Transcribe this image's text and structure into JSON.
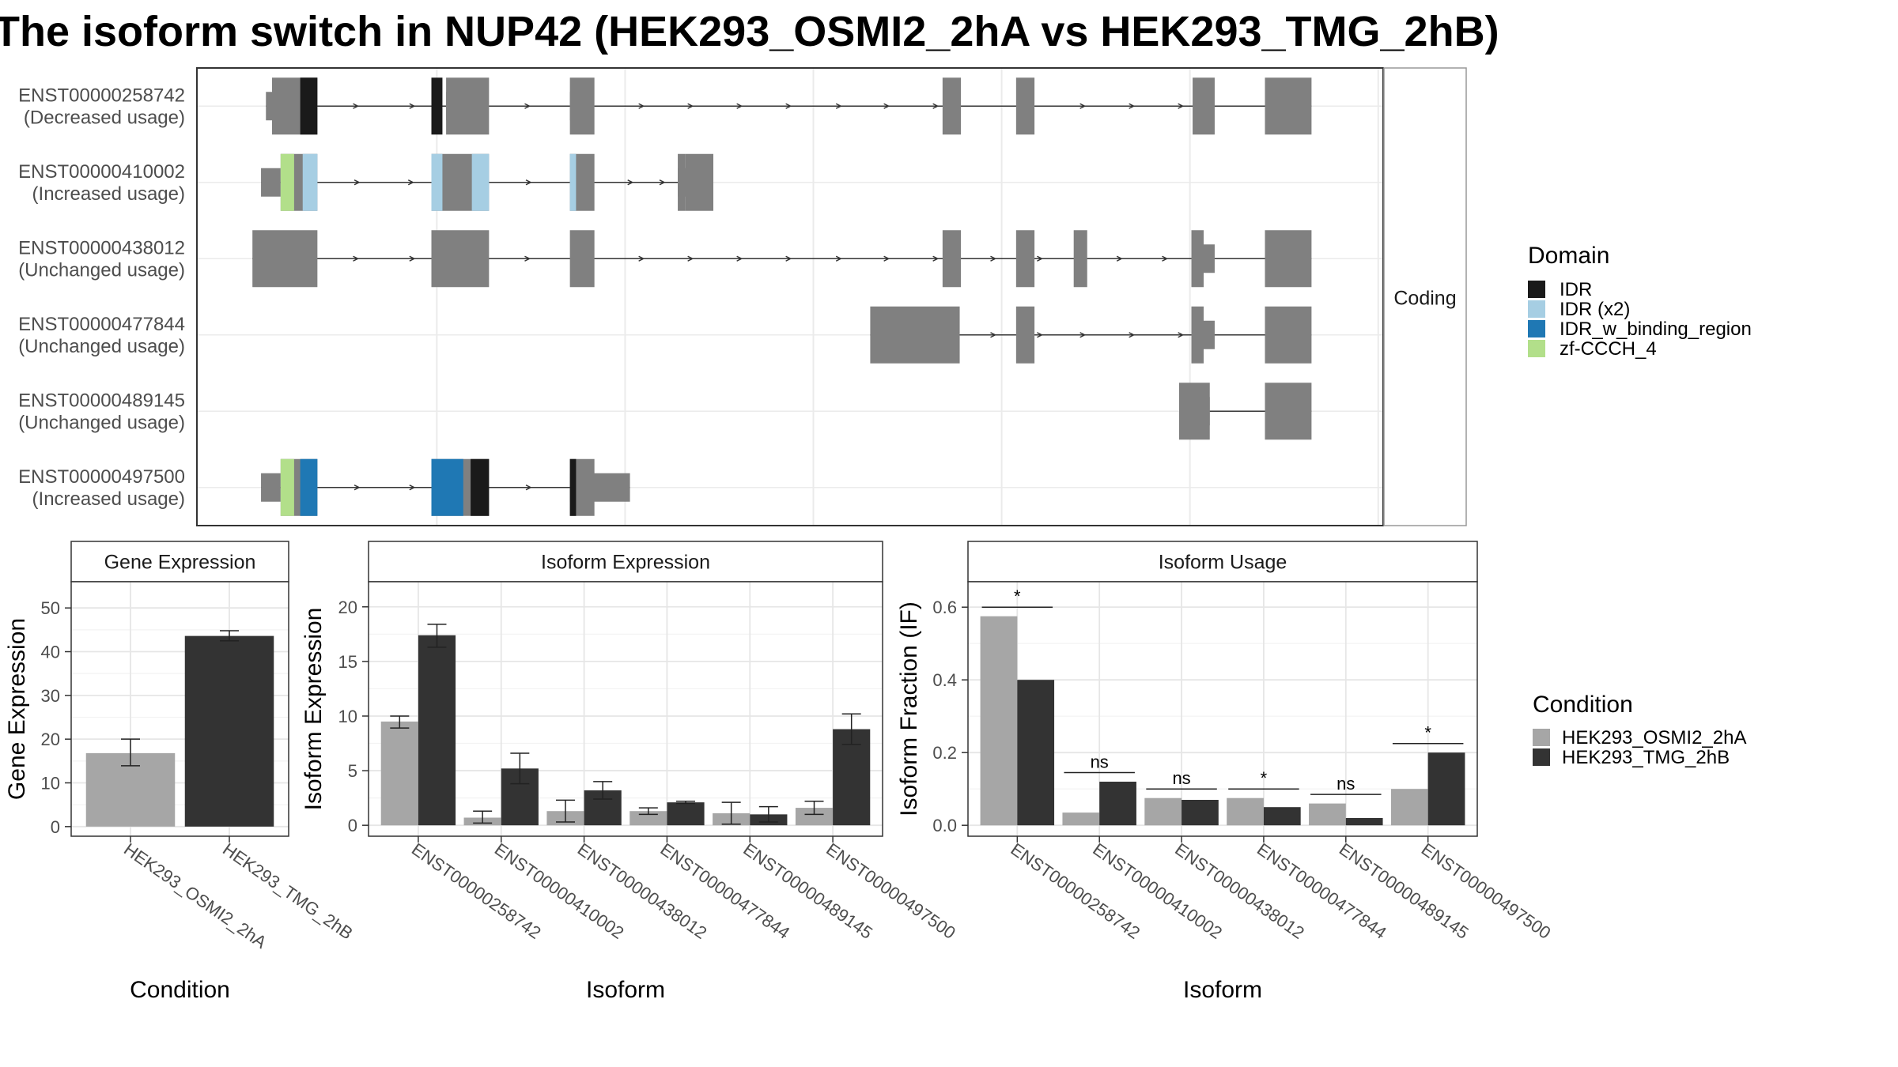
{
  "title": "The isoform switch in NUP42 (HEK293_OSMI2_2hA vs HEK293_TMG_2hB)",
  "colors": {
    "exon": "#808080",
    "cond_a": "#a6a6a6",
    "cond_b": "#333333",
    "IDR": "#1a1a1a",
    "IDR (x2)": "#a6cee3",
    "IDR_w_binding_region": "#1f78b4",
    "zf-CCCH_4": "#b2df8a"
  },
  "structure": {
    "strip_label": "Coding",
    "isoforms": [
      {
        "id": "ENST00000258742",
        "usage": "(Decreased usage)",
        "thin": [
          [
            15,
            20
          ],
          [
            162,
            167
          ],
          [
            263,
            267
          ]
        ],
        "thick": [
          [
            20,
            57
          ],
          [
            162,
            197
          ],
          [
            263,
            283
          ],
          [
            567,
            582
          ],
          [
            627,
            642
          ],
          [
            771,
            789
          ],
          [
            830,
            868
          ]
        ],
        "wide": [
          [
            830,
            868
          ]
        ],
        "domains": [
          [
            43,
            57,
            "IDR"
          ],
          [
            150,
            159,
            "IDR"
          ]
        ],
        "arrows": [
          90,
          136,
          230,
          323,
          363,
          403,
          443,
          484,
          523,
          563,
          683,
          723,
          763
        ]
      },
      {
        "id": "ENST00000410002",
        "usage": "(Increased usage)",
        "thin": [
          [
            11,
            27
          ],
          [
            351,
            380
          ]
        ],
        "thick": [
          [
            27,
            57
          ],
          [
            150,
            197
          ],
          [
            263,
            283
          ],
          [
            351,
            357
          ],
          [
            357,
            380
          ]
        ],
        "wide": [],
        "domains": [
          [
            27,
            38,
            "zf-CCCH_4"
          ],
          [
            45,
            57,
            "IDR (x2)"
          ],
          [
            150,
            159,
            "IDR (x2)"
          ],
          [
            183,
            197,
            "IDR (x2)"
          ],
          [
            263,
            268,
            "IDR (x2)"
          ]
        ],
        "arrows": [
          91,
          135,
          231,
          314,
          340
        ]
      },
      {
        "id": "ENST00000438012",
        "usage": "(Unchanged usage)",
        "thin": [
          [
            770,
            789
          ]
        ],
        "thick": [
          [
            4,
            57
          ],
          [
            150,
            197
          ],
          [
            263,
            283
          ],
          [
            567,
            582
          ],
          [
            627,
            642
          ],
          [
            674,
            685
          ],
          [
            770,
            780
          ],
          [
            830,
            868
          ]
        ],
        "wide": [
          [
            830,
            868
          ]
        ],
        "domains": [],
        "arrows": [
          90,
          136,
          230,
          323,
          363,
          403,
          443,
          484,
          523,
          563,
          610,
          648,
          713,
          750
        ]
      },
      {
        "id": "ENST00000477844",
        "usage": "(Unchanged usage)",
        "thin": [
          [
            770,
            789
          ]
        ],
        "thick": [
          [
            508,
            581
          ],
          [
            627,
            642
          ],
          [
            770,
            780
          ],
          [
            830,
            868
          ]
        ],
        "wide": [
          [
            830,
            868
          ]
        ],
        "domains": [],
        "arrows": [
          610,
          648,
          683,
          723,
          763
        ]
      },
      {
        "id": "ENST00000489145",
        "usage": "(Unchanged usage)",
        "thin": [
          [
            760,
            785
          ]
        ],
        "thick": [
          [
            760,
            785
          ],
          [
            830,
            868
          ]
        ],
        "wide": [
          [
            830,
            868
          ]
        ],
        "domains": [],
        "arrows": []
      },
      {
        "id": "ENST00000497500",
        "usage": "(Increased usage)",
        "thin": [
          [
            11,
            27
          ],
          [
            263,
            312
          ]
        ],
        "thick": [
          [
            27,
            57
          ],
          [
            150,
            197
          ],
          [
            263,
            283
          ]
        ],
        "wide": [],
        "domains": [
          [
            27,
            38,
            "zf-CCCH_4"
          ],
          [
            43,
            57,
            "IDR_w_binding_region"
          ],
          [
            150,
            176,
            "IDR_w_binding_region"
          ],
          [
            182,
            197,
            "IDR"
          ],
          [
            263,
            268,
            "IDR"
          ]
        ],
        "arrows": [
          91,
          136,
          231
        ]
      }
    ]
  },
  "legends": {
    "domain": {
      "title": "Domain",
      "items": [
        "IDR",
        "IDR (x2)",
        "IDR_w_binding_region",
        "zf-CCCH_4"
      ]
    },
    "condition": {
      "title": "Condition",
      "items": [
        "HEK293_OSMI2_2hA",
        "HEK293_TMG_2hB"
      ]
    }
  },
  "chart_data": [
    {
      "type": "bar",
      "title": "Gene Expression",
      "xlabel": "Condition",
      "ylabel": "Gene Expression",
      "categories": [
        "HEK293_OSMI2_2hA",
        "HEK293_TMG_2hB"
      ],
      "values": [
        16.8,
        43.6
      ],
      "errors": [
        [
          13.9,
          20.0
        ],
        [
          42.5,
          44.8
        ]
      ],
      "ylim": [
        -2.2,
        56
      ],
      "yticks": [
        0,
        10,
        20,
        30,
        40,
        50
      ]
    },
    {
      "type": "bar",
      "title": "Isoform Expression",
      "xlabel": "Isoform",
      "ylabel": "Isoform Expression",
      "categories": [
        "ENST00000258742",
        "ENST00000410002",
        "ENST00000438012",
        "ENST00000477844",
        "ENST00000489145",
        "ENST00000497500"
      ],
      "series": [
        {
          "name": "HEK293_OSMI2_2hA",
          "values": [
            9.5,
            0.7,
            1.3,
            1.3,
            1.1,
            1.6
          ],
          "errors": [
            [
              8.9,
              10.0
            ],
            [
              0.2,
              1.3
            ],
            [
              0.3,
              2.3
            ],
            [
              1.0,
              1.6
            ],
            [
              0.1,
              2.1
            ],
            [
              1.0,
              2.2
            ]
          ]
        },
        {
          "name": "HEK293_TMG_2hB",
          "values": [
            17.4,
            5.2,
            3.2,
            2.1,
            1.0,
            8.8
          ],
          "errors": [
            [
              16.3,
              18.4
            ],
            [
              3.8,
              6.6
            ],
            [
              2.4,
              4.0
            ],
            [
              2.0,
              2.2
            ],
            [
              0.3,
              1.7
            ],
            [
              7.4,
              10.2
            ]
          ]
        }
      ],
      "ylim": [
        -1.0,
        22.3
      ],
      "yticks": [
        0,
        5,
        10,
        15,
        20
      ]
    },
    {
      "type": "bar",
      "title": "Isoform Usage",
      "xlabel": "Isoform",
      "ylabel": "Isoform Fraction (IF)",
      "categories": [
        "ENST00000258742",
        "ENST00000410002",
        "ENST00000438012",
        "ENST00000477844",
        "ENST00000489145",
        "ENST00000497500"
      ],
      "series": [
        {
          "name": "HEK293_OSMI2_2hA",
          "values": [
            0.575,
            0.035,
            0.075,
            0.075,
            0.06,
            0.1
          ]
        },
        {
          "name": "HEK293_TMG_2hB",
          "values": [
            0.4,
            0.12,
            0.07,
            0.05,
            0.02,
            0.2
          ]
        }
      ],
      "significance": [
        "*",
        "ns",
        "ns",
        "*",
        "ns",
        "*"
      ],
      "ylim": [
        -0.03,
        0.67
      ],
      "yticks": [
        0.0,
        0.2,
        0.4,
        0.6
      ],
      "ytick_labels": [
        "0.0",
        "0.2",
        "0.4",
        "0.6"
      ]
    }
  ]
}
